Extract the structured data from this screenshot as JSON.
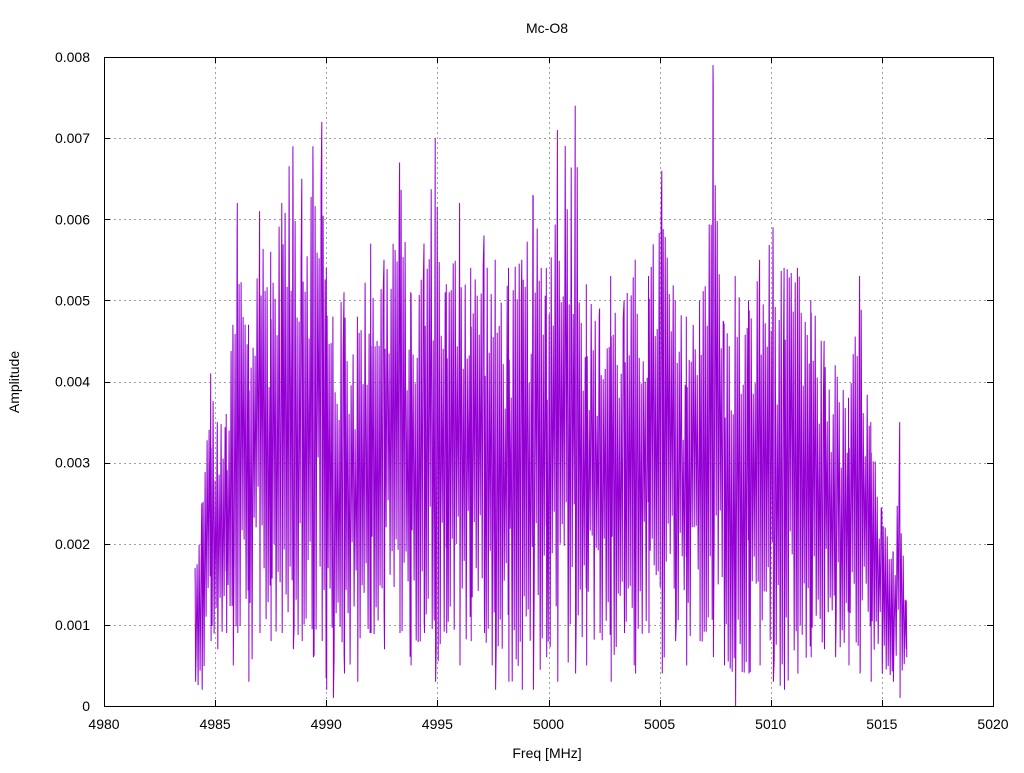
{
  "chart_data": {
    "type": "line",
    "title": "Mc-O8",
    "xlabel": "Freq [MHz]",
    "ylabel": "Amplitude",
    "xlim": [
      4980,
      5020
    ],
    "ylim": [
      0,
      0.008
    ],
    "xticks": [
      "4980",
      "4985",
      "4990",
      "4995",
      "5000",
      "5005",
      "5010",
      "5015",
      "5020"
    ],
    "yticks": [
      "0",
      "0.001",
      "0.002",
      "0.003",
      "0.004",
      "0.005",
      "0.006",
      "0.007",
      "0.008"
    ],
    "grid": true,
    "legend": "none",
    "series": [
      {
        "color": "#9400d3",
        "x_range": [
          4984.1,
          5016.1
        ],
        "x": [
          4984.1,
          4984.4,
          4984.8,
          4985.1,
          4985.5,
          4985.8,
          4986.0,
          4986.5,
          4987.0,
          4987.5,
          4988.0,
          4988.5,
          4988.9,
          4989.4,
          4989.8,
          4990.0,
          4990.3,
          4990.8,
          4991.4,
          4992.0,
          4992.6,
          4993.3,
          4993.8,
          4994.4,
          4994.9,
          4995.4,
          4996.0,
          4996.5,
          4997.1,
          4997.6,
          4998.2,
          4998.8,
          4999.3,
          4999.9,
          5000.4,
          5001.2,
          5001.7,
          5002.3,
          5002.8,
          5003.4,
          5003.9,
          5004.5,
          5005.1,
          5005.7,
          5006.2,
          5006.8,
          5007.4,
          5007.9,
          5008.4,
          5009.0,
          5009.5,
          5010.1,
          5010.6,
          5011.2,
          5011.8,
          5012.4,
          5012.9,
          5013.5,
          5014.0,
          5014.5,
          5015.0,
          5015.5,
          5015.8,
          5016.1
        ],
        "peaks": [
          0.0017,
          0.0025,
          0.0041,
          0.0035,
          0.0036,
          0.0047,
          0.0062,
          0.0047,
          0.0061,
          0.0056,
          0.0062,
          0.0069,
          0.0065,
          0.0069,
          0.0072,
          0.0054,
          0.0048,
          0.0051,
          0.0048,
          0.0057,
          0.0055,
          0.0067,
          0.0051,
          0.0057,
          0.007,
          0.0052,
          0.0062,
          0.0054,
          0.0058,
          0.0055,
          0.0054,
          0.0055,
          0.0063,
          0.0054,
          0.0071,
          0.0074,
          0.0052,
          0.0049,
          0.0053,
          0.005,
          0.0055,
          0.0053,
          0.0066,
          0.005,
          0.0048,
          0.005,
          0.0079,
          0.0047,
          0.0053,
          0.005,
          0.0055,
          0.0059,
          0.0054,
          0.0054,
          0.005,
          0.0045,
          0.0042,
          0.0038,
          0.0053,
          0.0035,
          0.0024,
          0.0019,
          0.0035,
          0.0013
        ],
        "troughs": [
          0.0003,
          0.0002,
          0.0008,
          0.0007,
          0.0009,
          0.0005,
          0.0009,
          0.0003,
          0.0009,
          0.0008,
          0.0009,
          0.0007,
          0.0008,
          0.0006,
          0.0008,
          0.0002,
          0.0001,
          0.0004,
          0.0003,
          0.0009,
          0.0007,
          0.0009,
          0.0005,
          0.0009,
          0.0003,
          0.0009,
          0.0005,
          0.0008,
          0.0009,
          0.0002,
          0.0003,
          0.0002,
          0.0002,
          0.0006,
          0.0003,
          0.0004,
          0.0005,
          0.0009,
          0.0003,
          0.0009,
          0.0004,
          0.0009,
          0.0004,
          0.0008,
          0.0005,
          0.0008,
          0.0006,
          0.0005,
          0.0,
          0.0004,
          0.0005,
          0.0003,
          0.0002,
          0.0004,
          0.0006,
          0.0007,
          0.0006,
          0.0005,
          0.0004,
          0.0003,
          0.0004,
          0.0003,
          0.0001,
          0.0006
        ],
        "note_peak": "Largest spike at 5007.4 MHz ≈ 0.0079"
      }
    ]
  }
}
